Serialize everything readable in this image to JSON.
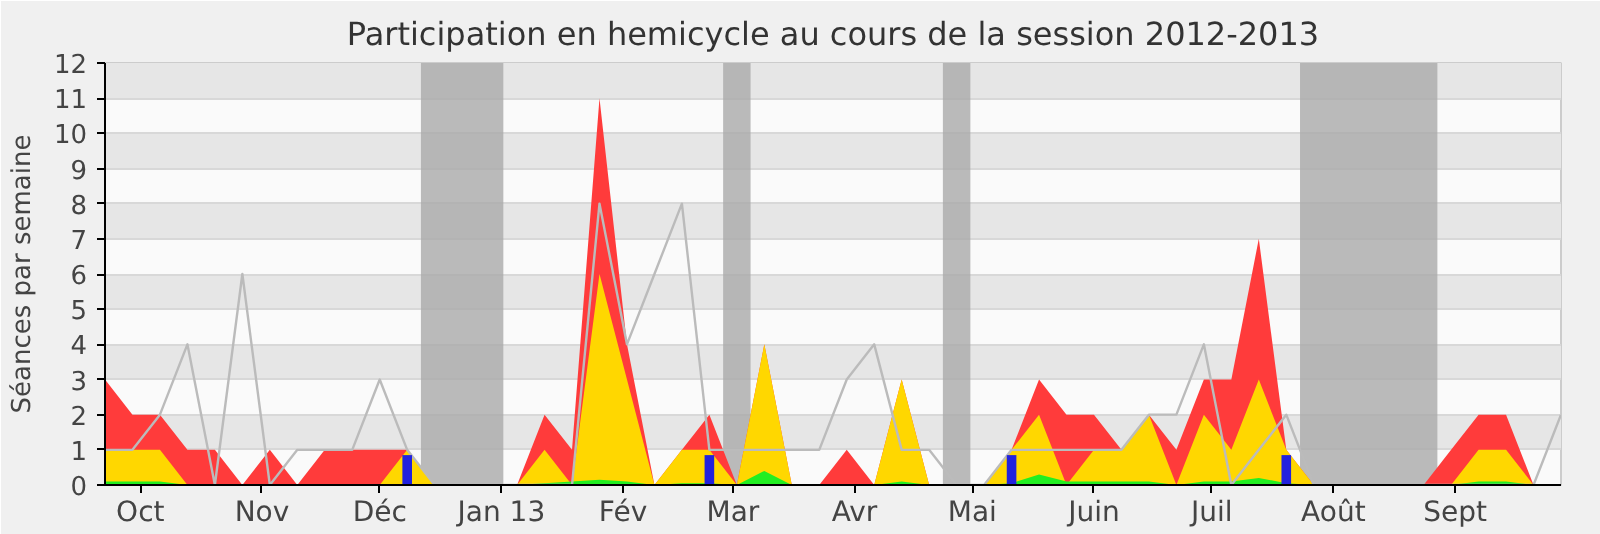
{
  "chart_data": {
    "type": "area",
    "title": "Participation en hemicycle au cours de la session 2012-2013",
    "ylabel": "Séances par semaine",
    "x": [
      "2012-09-22",
      "2012-09-29",
      "2012-10-06",
      "2012-10-13",
      "2012-10-20",
      "2012-10-27",
      "2012-11-03",
      "2012-11-10",
      "2012-11-17",
      "2012-11-24",
      "2012-12-01",
      "2012-12-08",
      "2012-12-15",
      "2012-12-22",
      "2012-12-29",
      "2013-01-05",
      "2013-01-12",
      "2013-01-19",
      "2013-01-26",
      "2013-02-02",
      "2013-02-09",
      "2013-02-16",
      "2013-02-23",
      "2013-03-02",
      "2013-03-09",
      "2013-03-16",
      "2013-03-23",
      "2013-03-30",
      "2013-04-06",
      "2013-04-13",
      "2013-04-20",
      "2013-04-27",
      "2013-05-04",
      "2013-05-11",
      "2013-05-18",
      "2013-05-25",
      "2013-06-01",
      "2013-06-08",
      "2013-06-15",
      "2013-06-22",
      "2013-06-29",
      "2013-07-06",
      "2013-07-13",
      "2013-07-20",
      "2013-07-27",
      "2013-08-03",
      "2013-08-10",
      "2013-08-17",
      "2013-08-24",
      "2013-08-31",
      "2013-09-07",
      "2013-09-14",
      "2013-09-21",
      "2013-09-28"
    ],
    "series": [
      {
        "color": "#ff3b3b",
        "values": [
          3,
          2,
          2,
          1,
          1,
          0,
          1,
          0,
          1,
          1,
          1,
          1,
          0,
          0,
          0,
          0,
          2,
          1,
          11,
          4,
          0,
          1,
          2,
          0,
          4,
          0,
          0,
          1,
          0,
          3,
          0,
          0,
          0,
          1,
          3,
          2,
          2,
          1,
          2,
          1,
          3,
          3,
          7,
          1,
          0,
          0,
          0,
          0,
          0,
          1,
          2,
          2,
          0,
          0
        ]
      },
      {
        "color": "#ffd700",
        "values": [
          1,
          1,
          1,
          0,
          0,
          0,
          0,
          0,
          0,
          0,
          0,
          1,
          0,
          0,
          0,
          0,
          1,
          0,
          6,
          3,
          0,
          1,
          1,
          0,
          4,
          0,
          0,
          0,
          0,
          3,
          0,
          0,
          0,
          1,
          2,
          0,
          1,
          1,
          2,
          0,
          2,
          1,
          3,
          1,
          0,
          0,
          0,
          0,
          0,
          0,
          1,
          1,
          0,
          0
        ]
      },
      {
        "color": "#22ee22",
        "values": [
          0.1,
          0.1,
          0.1,
          0,
          0,
          0,
          0,
          0,
          0,
          0,
          0,
          0,
          0,
          0,
          0,
          0,
          0.05,
          0.1,
          0.15,
          0.1,
          0,
          0.05,
          0.05,
          0,
          0.4,
          0,
          0,
          0,
          0,
          0.1,
          0,
          0,
          0,
          0.05,
          0.3,
          0.1,
          0.1,
          0.1,
          0.1,
          0,
          0.1,
          0.1,
          0.2,
          0.05,
          0,
          0,
          0,
          0,
          0,
          0,
          0.1,
          0.1,
          0,
          0
        ]
      },
      {
        "type": "line",
        "color": "#bbbbbb",
        "values": [
          1,
          1,
          2,
          4,
          0,
          6,
          0,
          1,
          1,
          1,
          3,
          1,
          0,
          0,
          0,
          0,
          0,
          0,
          8,
          4,
          6,
          8,
          1,
          1,
          1,
          1,
          1,
          3,
          4,
          1,
          1,
          0,
          0,
          1,
          1,
          1,
          1,
          1,
          2,
          2,
          4,
          0,
          1,
          2,
          0,
          0,
          0,
          0,
          0,
          0,
          0,
          0,
          0,
          2
        ]
      },
      {
        "type": "bar",
        "color": "#2222dd",
        "x": [
          "2012-12-08",
          "2013-02-23",
          "2013-05-11",
          "2013-07-20"
        ],
        "values": [
          0.85,
          0.85,
          0.85,
          0.85
        ]
      }
    ],
    "bands": [
      {
        "axis": "x",
        "from": "2012-12-11T12:00",
        "to": "2013-01-01T12:00",
        "color": "#aaaaaa"
      },
      {
        "axis": "x",
        "from": "2013-02-26T12:00",
        "to": "2013-03-05T12:00",
        "color": "#aaaaaa"
      },
      {
        "axis": "x",
        "from": "2013-04-23T12:00",
        "to": "2013-04-30T12:00",
        "color": "#aaaaaa"
      },
      {
        "axis": "x",
        "from": "2013-07-23T12:00",
        "to": "2013-08-27T12:00",
        "color": "#aaaaaa"
      }
    ],
    "xlim": [
      "2012-09-22",
      "2013-09-28"
    ],
    "xticks": [
      {
        "value": "2012-10-01",
        "label": "Oct"
      },
      {
        "value": "2012-11-01",
        "label": "Nov"
      },
      {
        "value": "2012-12-01",
        "label": "Déc"
      },
      {
        "value": "2013-01-01",
        "label": "Jan 13"
      },
      {
        "value": "2013-02-01",
        "label": "Fév"
      },
      {
        "value": "2013-03-01",
        "label": "Mar"
      },
      {
        "value": "2013-04-01",
        "label": "Avr"
      },
      {
        "value": "2013-05-01",
        "label": "Mai"
      },
      {
        "value": "2013-06-01",
        "label": "Juin"
      },
      {
        "value": "2013-07-01",
        "label": "Juil"
      },
      {
        "value": "2013-08-01",
        "label": "Août"
      },
      {
        "value": "2013-09-01",
        "label": "Sept"
      }
    ],
    "ylim": [
      0,
      12
    ],
    "yticks": [
      0,
      1,
      2,
      3,
      4,
      5,
      6,
      7,
      8,
      9,
      10,
      11,
      12
    ],
    "grid": "y"
  }
}
